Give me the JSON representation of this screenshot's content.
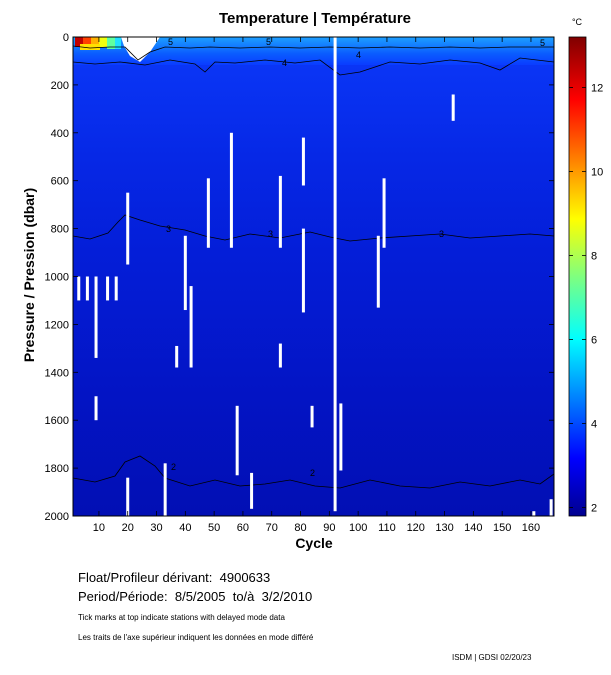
{
  "chart_data": {
    "type": "heatmap",
    "title": "Temperature | Température",
    "xlabel": "Cycle",
    "ylabel": "Pressure / Pression (dbar)",
    "xlim": [
      1,
      168
    ],
    "ylim": [
      2000,
      0
    ],
    "x_ticks": [
      10,
      20,
      30,
      40,
      50,
      60,
      70,
      80,
      90,
      100,
      110,
      120,
      130,
      140,
      150,
      160
    ],
    "y_ticks": [
      0,
      200,
      400,
      600,
      800,
      1000,
      1200,
      1400,
      1600,
      1800,
      2000
    ],
    "colorbar": {
      "unit": "°C",
      "range": [
        1.8,
        13.2
      ],
      "ticks": [
        2,
        4,
        6,
        8,
        10,
        12
      ]
    },
    "contour_labels": [
      "5",
      "4",
      "3",
      "2"
    ],
    "deep_water_temperature": 2.5,
    "surface_temperature_range": [
      4,
      13
    ],
    "contour_levels_approx": [
      {
        "level": 5,
        "depth_dbar": 40
      },
      {
        "level": 4,
        "depth_dbar": 110
      },
      {
        "level": 3,
        "depth_dbar": 840
      },
      {
        "level": 2,
        "depth_dbar": 1880
      }
    ],
    "gaps": [
      {
        "x": 3,
        "p": [
          1000,
          1100
        ]
      },
      {
        "x": 6,
        "p": [
          1000,
          1100
        ]
      },
      {
        "x": 9,
        "p": [
          1000,
          1340
        ]
      },
      {
        "x": 9,
        "p": [
          1500,
          1600
        ]
      },
      {
        "x": 13,
        "p": [
          1000,
          1100
        ]
      },
      {
        "x": 16,
        "p": [
          1000,
          1100
        ]
      },
      {
        "x": 20,
        "p": [
          650,
          950
        ]
      },
      {
        "x": 20,
        "p": [
          1840,
          2000
        ]
      },
      {
        "x": 33,
        "p": [
          1780,
          2000
        ]
      },
      {
        "x": 37,
        "p": [
          1290,
          1380
        ]
      },
      {
        "x": 40,
        "p": [
          830,
          1140
        ]
      },
      {
        "x": 42,
        "p": [
          1040,
          1380
        ]
      },
      {
        "x": 48,
        "p": [
          590,
          880
        ]
      },
      {
        "x": 56,
        "p": [
          400,
          880
        ]
      },
      {
        "x": 58,
        "p": [
          1540,
          1830
        ]
      },
      {
        "x": 63,
        "p": [
          1820,
          1970
        ]
      },
      {
        "x": 73,
        "p": [
          580,
          880
        ]
      },
      {
        "x": 73,
        "p": [
          1280,
          1380
        ]
      },
      {
        "x": 81,
        "p": [
          420,
          620
        ]
      },
      {
        "x": 81,
        "p": [
          800,
          1150
        ]
      },
      {
        "x": 84,
        "p": [
          1540,
          1630
        ]
      },
      {
        "x": 92,
        "p": [
          0,
          1980
        ]
      },
      {
        "x": 94,
        "p": [
          1530,
          1810
        ]
      },
      {
        "x": 107,
        "p": [
          830,
          1130
        ]
      },
      {
        "x": 109,
        "p": [
          590,
          880
        ]
      },
      {
        "x": 133,
        "p": [
          240,
          350
        ]
      },
      {
        "x": 161,
        "p": [
          1980,
          2000
        ]
      },
      {
        "x": 167,
        "p": [
          1930,
          2000
        ]
      }
    ]
  },
  "info": {
    "float_label": "Float/Profileur dérivant:",
    "float_id": "4900633",
    "period_label": "Period/Période:",
    "period_from": "8/5/2005",
    "period_to_label": "to/à",
    "period_to": "3/2/2010",
    "note_en": "Tick marks at top indicate stations with delayed mode data",
    "note_fr": "Les traits de l'axe supérieur indiquent les données en mode différé",
    "footer": "ISDM | GDSI  02/20/23"
  }
}
